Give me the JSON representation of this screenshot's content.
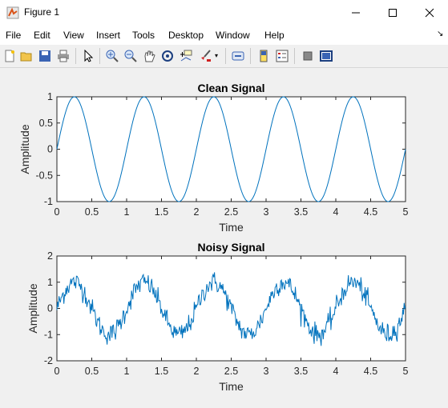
{
  "window": {
    "title": "Figure 1"
  },
  "menu": [
    "File",
    "Edit",
    "View",
    "Insert",
    "Tools",
    "Desktop",
    "Window",
    "Help"
  ],
  "toolbar_icons": [
    "new-figure-icon",
    "open-file-icon",
    "save-icon",
    "print-icon",
    "select-pointer-icon",
    "zoom-in-icon",
    "zoom-out-icon",
    "pan-hand-icon",
    "rotate-3d-icon",
    "data-cursor-icon",
    "brush-icon",
    "link-plot-icon",
    "insert-colorbar-icon",
    "insert-legend-icon",
    "hide-plot-tools-icon",
    "show-plot-tools-icon"
  ],
  "chart_data": [
    {
      "type": "line",
      "title": "Clean Signal",
      "xlabel": "Time",
      "ylabel": "Amplitude",
      "xlim": [
        0,
        5
      ],
      "ylim": [
        -1,
        1
      ],
      "xticks": [
        "0",
        "0.5",
        "1",
        "1.5",
        "2",
        "2.5",
        "3",
        "3.5",
        "4",
        "4.5",
        "5"
      ],
      "yticks": [
        "1",
        "0.5",
        "0",
        "-0.5",
        "-1"
      ],
      "function": "sin(2*pi*1*t)",
      "frequency_hz": 1,
      "amplitude": 1,
      "color": "#0072bd"
    },
    {
      "type": "line",
      "title": "Noisy Signal",
      "xlabel": "Time",
      "ylabel": "Amplitude",
      "xlim": [
        0,
        5
      ],
      "ylim": [
        -2,
        2
      ],
      "xticks": [
        "0",
        "0.5",
        "1",
        "1.5",
        "2",
        "2.5",
        "3",
        "3.5",
        "4",
        "4.5",
        "5"
      ],
      "yticks": [
        "2",
        "1",
        "0",
        "-1",
        "-2"
      ],
      "function": "sin(2*pi*1*t) + noise",
      "frequency_hz": 1,
      "amplitude": 1,
      "noise_std": 0.2,
      "color": "#0072bd"
    }
  ]
}
